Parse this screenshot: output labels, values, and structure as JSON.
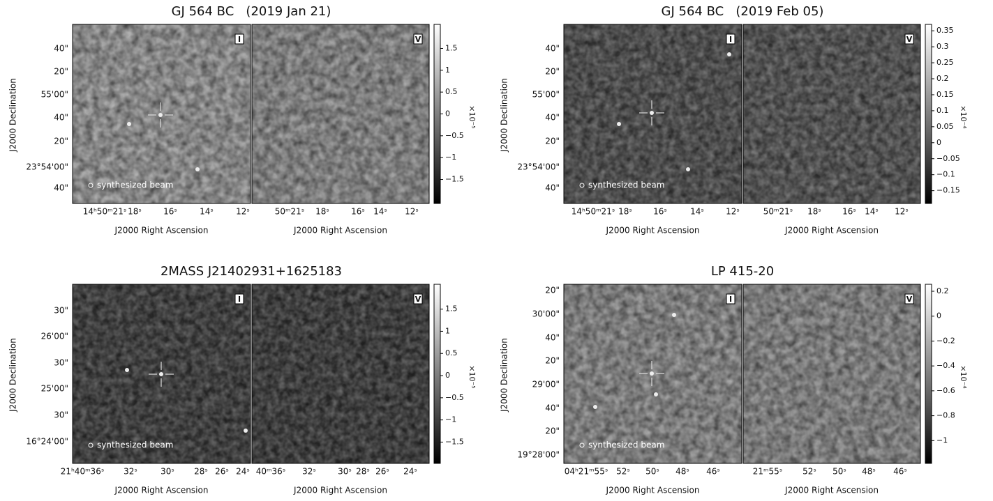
{
  "panels": [
    {
      "title": "GJ 564 BC   (2019 Jan 21)",
      "stokes": [
        "I",
        "V"
      ],
      "dec_label": "J2000 Declination",
      "ra_label": "J2000 Right Ascension",
      "beam": "synthesized beam",
      "dec_ticks": [
        "40\"",
        "20\"",
        "55'00\"",
        "40\"",
        "20\"",
        "23°54'00\"",
        "40\""
      ],
      "ra_ticks_i": [
        "14ʰ50ᵐ21ˢ",
        "18ˢ",
        "16ˢ",
        "14ˢ",
        "12ˢ"
      ],
      "ra_ticks_v": [
        "50ᵐ21ˢ",
        "18ˢ",
        "16ˢ",
        "14ˢ",
        "12ˢ"
      ],
      "colorbar": {
        "lim": [
          -2.05,
          2.05
        ],
        "unit": "×10⁻⁵",
        "ticks": [
          1.5,
          1,
          0.5,
          0,
          {
            "value": -0.5,
            "label": "−0.5"
          },
          {
            "value": -1,
            "label": "−1"
          },
          {
            "value": -1.5,
            "label": "−1.5"
          }
        ]
      }
    },
    {
      "title": "GJ 564 BC   (2019 Feb 05)",
      "stokes": [
        "I",
        "V"
      ],
      "dec_label": "J2000 Declination",
      "ra_label": "J2000 Right Ascension",
      "beam": "synthesized beam",
      "dec_ticks": [
        "40\"",
        "20\"",
        "55'00\"",
        "40\"",
        "20\"",
        "23°54'00\"",
        "40\""
      ],
      "ra_ticks_i": [
        "14ʰ50ᵐ21ˢ",
        "18ˢ",
        "16ˢ",
        "14ˢ",
        "12ˢ"
      ],
      "ra_ticks_v": [
        "50ᵐ21ˢ",
        "18ˢ",
        "16ˢ",
        "14ˢ",
        "12ˢ"
      ],
      "colorbar": {
        "lim": [
          -0.19,
          0.37
        ],
        "unit": "×10⁻⁴",
        "ticks": [
          0.35,
          0.3,
          0.25,
          0.2,
          0.15,
          0.1,
          0.05,
          0,
          {
            "value": -0.05,
            "label": "−0.05"
          },
          {
            "value": -0.1,
            "label": "−0.1"
          },
          {
            "value": -0.15,
            "label": "−0.15"
          }
        ]
      }
    },
    {
      "title": "2MASS J21402931+1625183",
      "stokes": [
        "I",
        "V"
      ],
      "dec_label": "J2000 Declination",
      "ra_label": "J2000 Right Ascension",
      "beam": "synthesized beam",
      "dec_ticks": [
        "30\"",
        "26'00\"",
        "30\"",
        "25'00\"",
        "30\"",
        "16°24'00\""
      ],
      "ra_ticks_i": [
        "21ʰ40ᵐ36ˢ",
        "32ˢ",
        "30ˢ",
        "28ˢ",
        "26ˢ",
        "24ˢ"
      ],
      "ra_ticks_v": [
        "40ᵐ36ˢ",
        "32ˢ",
        "30ˢ",
        "28ˢ",
        "26ˢ",
        "24ˢ"
      ],
      "colorbar": {
        "lim": [
          -1.98,
          2.06
        ],
        "unit": "×10⁻⁵",
        "ticks": [
          1.5,
          1,
          0.5,
          0,
          {
            "value": -0.5,
            "label": "−0.5"
          },
          {
            "value": -1,
            "label": "−1"
          },
          {
            "value": -1.5,
            "label": "−1.5"
          }
        ]
      }
    },
    {
      "title": "LP 415-20",
      "stokes": [
        "I",
        "V"
      ],
      "dec_label": "J2000 Declination",
      "ra_label": "J2000 Right Ascension",
      "beam": "synthesized beam",
      "dec_ticks": [
        "20\"",
        "30'00\"",
        "40\"",
        "20\"",
        "29'00\"",
        "40\"",
        "20\"",
        "19°28'00\""
      ],
      "ra_ticks_i": [
        "04ʰ21ᵐ55ˢ",
        "52ˢ",
        "50ˢ",
        "48ˢ",
        "46ˢ"
      ],
      "ra_ticks_v": [
        "21ᵐ55ˢ",
        "52ˢ",
        "50ˢ",
        "48ˢ",
        "46ˢ"
      ],
      "colorbar": {
        "lim": [
          -1.183,
          0.256
        ],
        "unit": "×10⁻⁴",
        "ticks": [
          0.2,
          0,
          {
            "value": -0.2,
            "label": "−0.2"
          },
          {
            "value": -0.4,
            "label": "−0.4"
          },
          {
            "value": -0.6,
            "label": "−0.6"
          },
          {
            "value": -0.8,
            "label": "−0.8"
          },
          {
            "value": -1,
            "label": "−1"
          }
        ]
      }
    }
  ]
}
